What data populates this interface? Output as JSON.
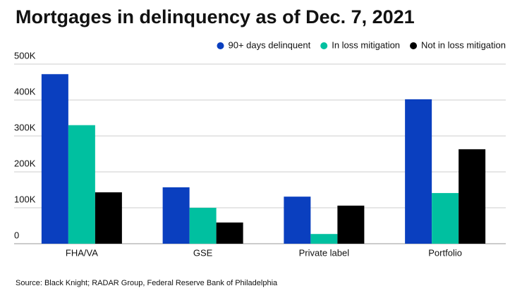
{
  "chart_data": {
    "type": "bar",
    "title": "Mortgages in delinquency as of Dec. 7, 2021",
    "source": "Source: Black Knight; RADAR Group, Federal Reserve Bank of Philadelphia",
    "categories": [
      "FHA/VA",
      "GSE",
      "Private label",
      "Portfolio"
    ],
    "series": [
      {
        "name": "90+ days delinquent",
        "color": "#0a3fbf",
        "values": [
          472000,
          157000,
          131000,
          402000
        ]
      },
      {
        "name": "In loss mitigation",
        "color": "#00c0a0",
        "values": [
          330000,
          100000,
          27000,
          141000
        ]
      },
      {
        "name": "Not in loss mitigation",
        "color": "#000000",
        "values": [
          143000,
          59000,
          106000,
          263000
        ]
      }
    ],
    "ylim": [
      0,
      500000
    ],
    "yticks": [
      0,
      {
        "value": 100000,
        "label": "100K"
      },
      {
        "value": 200000,
        "label": "200K"
      },
      {
        "value": 300000,
        "label": "300K"
      },
      {
        "value": 400000,
        "label": "400K"
      },
      {
        "value": 500000,
        "label": "500K"
      }
    ],
    "grid": true,
    "legend": "top-right"
  }
}
